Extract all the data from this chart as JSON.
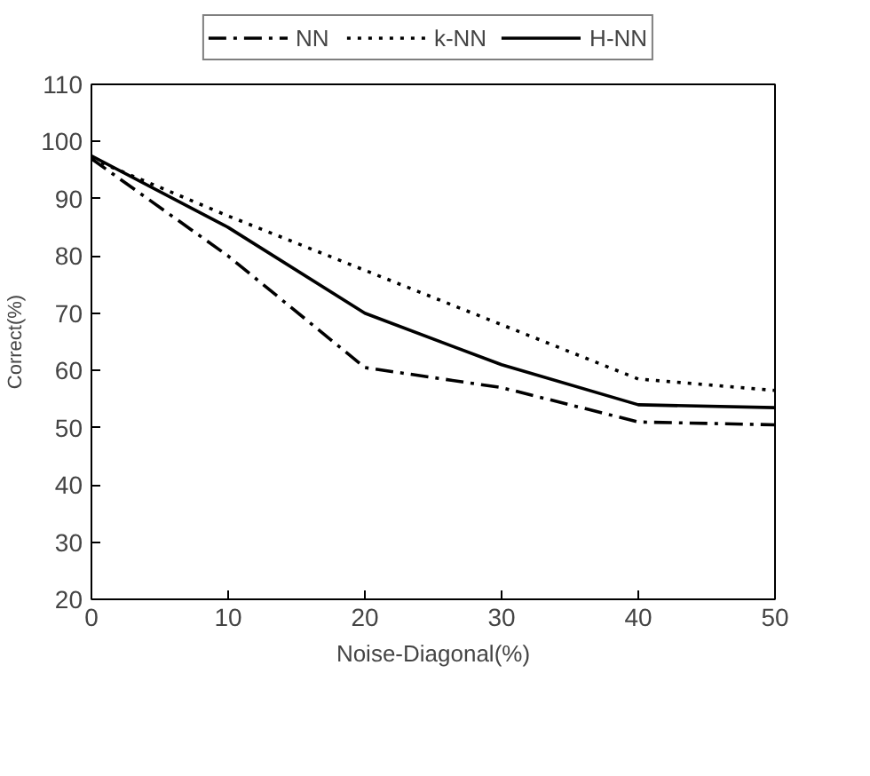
{
  "chart_data": {
    "type": "line",
    "xlabel": "Noise-Diagonal(%)",
    "ylabel": "Correct(%)",
    "x": [
      0,
      10,
      20,
      30,
      40,
      50
    ],
    "series": [
      {
        "name": "NN",
        "color": "#000000",
        "line_style": "dashdot",
        "values": [
          97,
          80,
          60.5,
          57,
          51,
          50.5
        ]
      },
      {
        "name": "k-NN",
        "color": "#000000",
        "line_style": "dotted",
        "values": [
          97,
          87,
          77.5,
          68,
          58.5,
          56.5
        ]
      },
      {
        "name": "H-NN",
        "color": "#000000",
        "line_style": "solid",
        "values": [
          97.5,
          85,
          70,
          61,
          54,
          53.5
        ]
      }
    ],
    "xlim": [
      0,
      50
    ],
    "ylim": [
      20,
      110
    ],
    "xticks": [
      0,
      10,
      20,
      30,
      40,
      50
    ],
    "yticks": [
      20,
      30,
      40,
      50,
      60,
      70,
      80,
      90,
      100,
      110
    ],
    "grid": false,
    "legend": "top",
    "marker": "none"
  }
}
